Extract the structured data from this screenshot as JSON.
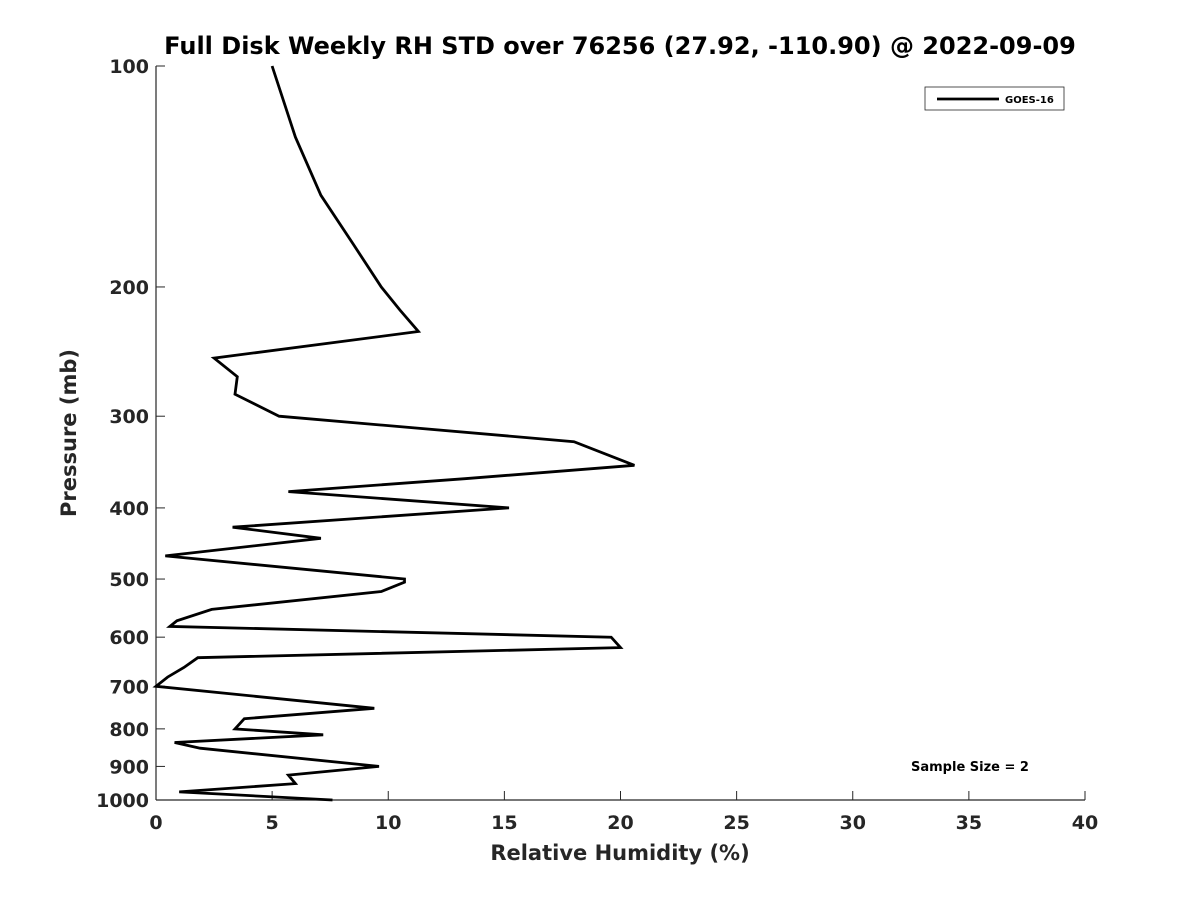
{
  "chart_data": {
    "type": "line",
    "title": "Full Disk Weekly RH STD over 76256 (27.92, -110.90) @ 2022-09-09",
    "xlabel": "Relative Humidity (%)",
    "ylabel": "Pressure (mb)",
    "xlim": [
      0,
      40
    ],
    "ylim": [
      100,
      1000
    ],
    "y_scale": "log",
    "y_inverted": true,
    "x_ticks": [
      0,
      5,
      10,
      15,
      20,
      25,
      30,
      35,
      40
    ],
    "y_ticks": [
      100,
      200,
      300,
      400,
      500,
      600,
      700,
      800,
      900,
      1000
    ],
    "grid": false,
    "legend_position": "top-right",
    "series": [
      {
        "name": "GOES-16",
        "color": "#000000",
        "points": [
          [
            5.0,
            100
          ],
          [
            6.0,
            125
          ],
          [
            7.1,
            150
          ],
          [
            8.5,
            175
          ],
          [
            9.7,
            200
          ],
          [
            10.5,
            215
          ],
          [
            11.3,
            230
          ],
          [
            2.5,
            250
          ],
          [
            3.5,
            265
          ],
          [
            3.4,
            280
          ],
          [
            5.3,
            300
          ],
          [
            18.0,
            325
          ],
          [
            20.6,
            350
          ],
          [
            13.3,
            365
          ],
          [
            5.7,
            380
          ],
          [
            15.2,
            400
          ],
          [
            3.3,
            425
          ],
          [
            7.1,
            440
          ],
          [
            0.4,
            465
          ],
          [
            10.7,
            500
          ],
          [
            10.7,
            505
          ],
          [
            9.7,
            520
          ],
          [
            2.4,
            550
          ],
          [
            0.9,
            570
          ],
          [
            0.6,
            580
          ],
          [
            19.6,
            600
          ],
          [
            20.0,
            620
          ],
          [
            1.8,
            640
          ],
          [
            1.2,
            660
          ],
          [
            0.5,
            680
          ],
          [
            0.0,
            700
          ],
          [
            9.4,
            750
          ],
          [
            3.8,
            775
          ],
          [
            3.4,
            800
          ],
          [
            7.2,
            815
          ],
          [
            0.8,
            835
          ],
          [
            1.9,
            850
          ],
          [
            9.6,
            900
          ],
          [
            5.7,
            925
          ],
          [
            6.0,
            950
          ],
          [
            1.0,
            975
          ],
          [
            7.6,
            1000
          ]
        ]
      }
    ],
    "annotations": [
      "Sample Size = 2"
    ]
  }
}
